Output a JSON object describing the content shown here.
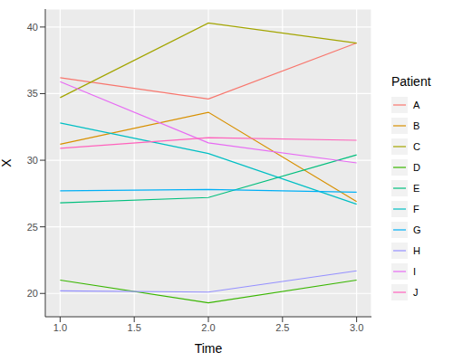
{
  "chart_data": {
    "type": "line",
    "x_label": "Time",
    "y_label": "X",
    "legend_title": "Patient",
    "x": [
      1,
      2,
      3
    ],
    "series": [
      {
        "name": "A",
        "color": "#F8766D",
        "values": [
          36.2,
          34.6,
          38.8
        ]
      },
      {
        "name": "B",
        "color": "#D89000",
        "values": [
          31.2,
          33.6,
          26.9
        ]
      },
      {
        "name": "C",
        "color": "#A3A500",
        "values": [
          34.7,
          40.3,
          38.8
        ]
      },
      {
        "name": "D",
        "color": "#39B600",
        "values": [
          21.0,
          19.3,
          21.0
        ]
      },
      {
        "name": "E",
        "color": "#00BF7D",
        "values": [
          26.8,
          27.2,
          30.4
        ]
      },
      {
        "name": "F",
        "color": "#00BFC4",
        "values": [
          32.8,
          30.5,
          26.7
        ]
      },
      {
        "name": "G",
        "color": "#00B0F6",
        "values": [
          27.7,
          27.8,
          27.6
        ]
      },
      {
        "name": "H",
        "color": "#9590FF",
        "values": [
          20.2,
          20.1,
          21.7
        ]
      },
      {
        "name": "I",
        "color": "#E76BF3",
        "values": [
          35.9,
          31.3,
          29.8
        ]
      },
      {
        "name": "J",
        "color": "#FF62BC",
        "values": [
          30.9,
          31.7,
          31.5
        ]
      }
    ],
    "xlim": [
      0.9,
      3.1
    ],
    "xticks": [
      {
        "value": 1,
        "label": "1.0"
      },
      {
        "value": 1.5,
        "label": "1.5"
      },
      {
        "value": 2,
        "label": "2.0"
      },
      {
        "value": 2.5,
        "label": "2.5"
      },
      {
        "value": 3,
        "label": "3.0"
      }
    ],
    "ylim": [
      18.25,
      41.35
    ],
    "yticks": [
      20,
      25,
      30,
      35,
      40
    ],
    "grid": true,
    "legend": "right"
  }
}
